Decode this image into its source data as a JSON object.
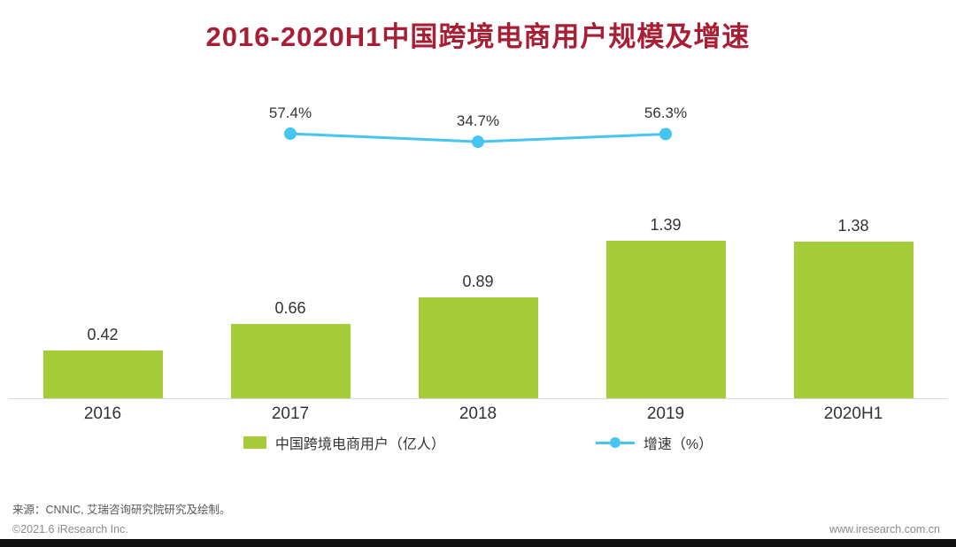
{
  "title": "2016-2020H1中国跨境电商用户规模及增速",
  "chart_data": {
    "type": "bar",
    "subtype": "bar-line-combo",
    "title": "2016-2020H1中国跨境电商用户规模及增速",
    "categories": [
      "2016",
      "2017",
      "2018",
      "2019",
      "2020H1"
    ],
    "series": [
      {
        "name": "中国跨境电商用户（亿人）",
        "type": "bar",
        "color": "#a5cd39",
        "values": [
          0.42,
          0.66,
          0.89,
          1.39,
          1.38
        ],
        "value_labels": [
          "0.42",
          "0.66",
          "0.89",
          "1.39",
          "1.38"
        ]
      },
      {
        "name": "增速（%）",
        "type": "line",
        "color": "#45c5f0",
        "values": [
          null,
          57.4,
          34.7,
          56.3,
          null
        ],
        "value_labels": [
          "",
          "57.4%",
          "34.7%",
          "56.3%",
          ""
        ]
      }
    ],
    "xlabel": "",
    "ylabel": "",
    "grid": false,
    "axes_hidden": true,
    "legend_position": "bottom"
  },
  "legend": {
    "bar_label": "中国跨境电商用户（亿人）",
    "line_label": "增速（%）"
  },
  "footer": {
    "source": "来源：CNNIC, 艾瑞咨询研究院研究及绘制。",
    "copyright": "©2021.6 iResearch Inc.",
    "website": "www.iresearch.com.cn"
  },
  "colors": {
    "title": "#a81e34",
    "bar": "#a5cd39",
    "line": "#45c5f0",
    "axis": "#d9d9d9",
    "label_text": "#333333"
  }
}
